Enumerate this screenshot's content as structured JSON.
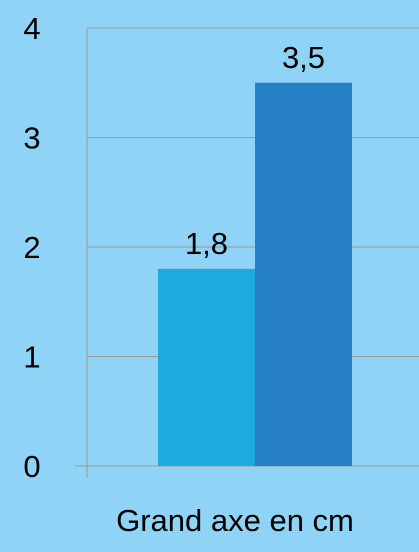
{
  "chart_data": {
    "type": "bar",
    "categories": [
      "Grand axe en cm"
    ],
    "series": [
      {
        "values": [
          1.8
        ],
        "labels": [
          "1,8"
        ],
        "color": "#1FA9E1"
      },
      {
        "values": [
          3.5
        ],
        "labels": [
          "3,5"
        ],
        "color": "#2680C8"
      }
    ],
    "xlabel": "Grand axe en cm",
    "ylim": [
      0,
      4
    ],
    "yticks": [
      "0",
      "1",
      "2",
      "3",
      "4"
    ],
    "grid": true,
    "background_color": "#8FD3F7",
    "gridline_color": "#9A9A9A",
    "text_color": "#000000"
  }
}
